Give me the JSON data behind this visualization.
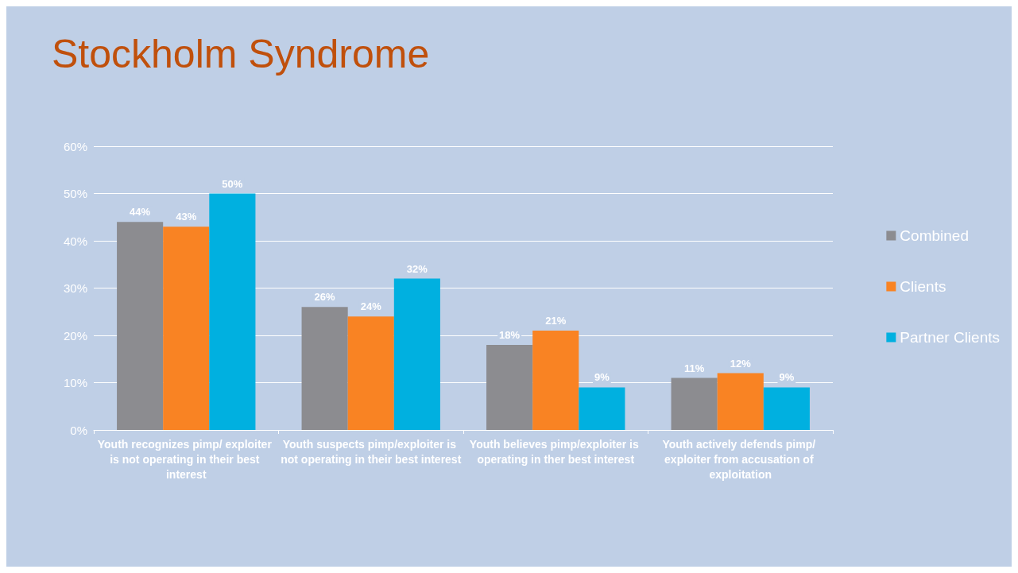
{
  "chart_data": {
    "type": "bar",
    "title": "Stockholm Syndrome",
    "categories": [
      "Youth recognizes pimp/ exploiter is not operating in their best interest",
      "Youth suspects pimp/exploiter is not operating in their best interest",
      "Youth believes pimp/exploiter is operating in ther best interest",
      "Youth actively defends pimp/ exploiter from accusation of exploitation"
    ],
    "series": [
      {
        "name": "Combined",
        "color": "#8c8c90",
        "values": [
          44,
          26,
          18,
          11
        ],
        "value_labels": [
          "44%",
          "26%",
          "18%",
          "11%"
        ]
      },
      {
        "name": "Clients",
        "color": "#f98323",
        "values": [
          43,
          24,
          21,
          12
        ],
        "value_labels": [
          "43%",
          "24%",
          "21%",
          "12%"
        ]
      },
      {
        "name": "Partner Clients",
        "color": "#00b0e0",
        "values": [
          50,
          32,
          9,
          9
        ],
        "value_labels": [
          "50%",
          "32%",
          "9%",
          "9%"
        ]
      }
    ],
    "ylim": [
      0,
      60
    ],
    "yticks": [
      {
        "value": 0,
        "label": "0%"
      },
      {
        "value": 10,
        "label": "10%"
      },
      {
        "value": 20,
        "label": "20%"
      },
      {
        "value": 30,
        "label": "30%"
      },
      {
        "value": 40,
        "label": "40%"
      },
      {
        "value": 50,
        "label": "50%"
      },
      {
        "value": 60,
        "label": "60%"
      }
    ],
    "grid": "y",
    "legend": "right"
  }
}
